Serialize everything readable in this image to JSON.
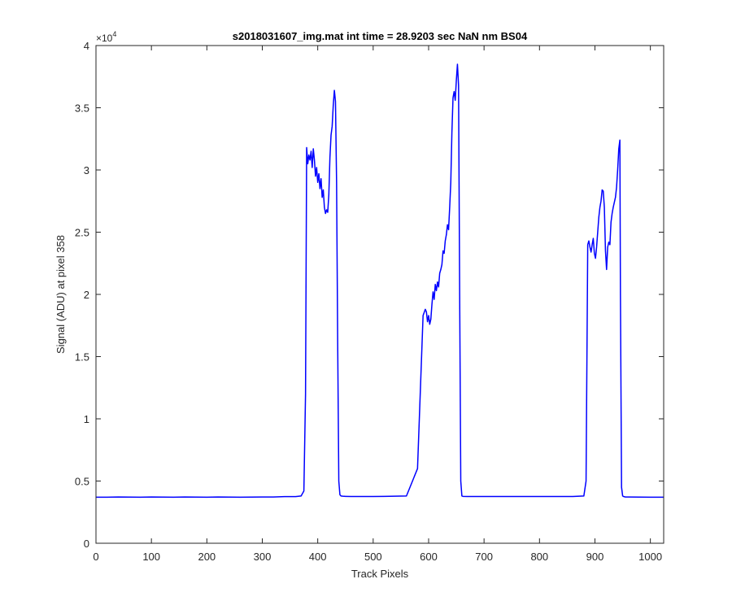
{
  "chart_data": {
    "type": "line",
    "title": "s2018031607_img.mat int time = 28.9203 sec  NaN nm BS04",
    "xlabel": "Track Pixels",
    "ylabel": "Signal (ADU) at pixel 358",
    "xlim": [
      0,
      1024
    ],
    "ylim": [
      0,
      40000
    ],
    "x_ticks": [
      0,
      100,
      200,
      300,
      400,
      500,
      600,
      700,
      800,
      900,
      1000
    ],
    "x_tick_labels": [
      "0",
      "100",
      "200",
      "300",
      "400",
      "500",
      "600",
      "700",
      "800",
      "900",
      "1000"
    ],
    "y_ticks": [
      0,
      5000,
      10000,
      15000,
      20000,
      25000,
      30000,
      35000,
      40000
    ],
    "y_tick_labels": [
      "0",
      "0.5",
      "1",
      "1.5",
      "2",
      "2.5",
      "3",
      "3.5",
      "4"
    ],
    "y_exponent": "×10",
    "y_exponent_power": "4",
    "grid": false,
    "line_color": "#0000ff",
    "series": [
      {
        "x": [
          0,
          20,
          40,
          60,
          80,
          100,
          120,
          140,
          160,
          180,
          200,
          220,
          240,
          260,
          280,
          300,
          320,
          340,
          360,
          370,
          375,
          378,
          380,
          382,
          384,
          386,
          388,
          390,
          392,
          394,
          396,
          398,
          400,
          402,
          404,
          406,
          408,
          410,
          412,
          414,
          416,
          418,
          420,
          422,
          424,
          426,
          428,
          430,
          432,
          434,
          436,
          438,
          440,
          442,
          445,
          450,
          460,
          480,
          500,
          520,
          540,
          560,
          580,
          590,
          594,
          596,
          598,
          600,
          602,
          604,
          606,
          608,
          610,
          612,
          614,
          616,
          618,
          620,
          622,
          624,
          626,
          628,
          630,
          632,
          634,
          636,
          638,
          640,
          642,
          644,
          646,
          648,
          650,
          652,
          654,
          656,
          658,
          660,
          662,
          670,
          680,
          700,
          720,
          740,
          760,
          780,
          800,
          820,
          840,
          860,
          880,
          884,
          887,
          889,
          891,
          893,
          895,
          897,
          899,
          901,
          903,
          905,
          907,
          909,
          911,
          913,
          915,
          917,
          919,
          921,
          923,
          925,
          927,
          929,
          931,
          933,
          935,
          937,
          939,
          941,
          943,
          945,
          946,
          948,
          950,
          952,
          955,
          960,
          980,
          1000,
          1024
        ],
        "y": [
          3700,
          3700,
          3720,
          3710,
          3700,
          3720,
          3710,
          3700,
          3720,
          3710,
          3700,
          3720,
          3710,
          3700,
          3710,
          3720,
          3720,
          3750,
          3750,
          3800,
          4200,
          12000,
          31800,
          30500,
          31200,
          30800,
          31500,
          30200,
          31700,
          30800,
          29500,
          30200,
          29000,
          29700,
          28500,
          29300,
          27800,
          28400,
          27000,
          26500,
          26800,
          26600,
          28000,
          31000,
          32800,
          33500,
          35200,
          36400,
          35500,
          29000,
          16000,
          5000,
          3900,
          3800,
          3780,
          3770,
          3760,
          3760,
          3760,
          3770,
          3780,
          3800,
          6000,
          18300,
          18800,
          18600,
          17800,
          18300,
          17600,
          18000,
          19200,
          20200,
          19600,
          20800,
          20300,
          21000,
          20600,
          21700,
          22000,
          22400,
          23500,
          23300,
          24300,
          24800,
          25600,
          25200,
          27000,
          29000,
          33000,
          35800,
          36300,
          35600,
          37200,
          38500,
          36800,
          20000,
          5000,
          3800,
          3770,
          3760,
          3760,
          3760,
          3760,
          3760,
          3760,
          3760,
          3760,
          3760,
          3760,
          3760,
          3800,
          5000,
          24000,
          24300,
          23800,
          23400,
          24000,
          24500,
          23300,
          22900,
          23800,
          25000,
          26200,
          27000,
          27500,
          28400,
          28300,
          27000,
          23500,
          22000,
          23800,
          24200,
          24000,
          25800,
          26500,
          27000,
          27400,
          27800,
          28600,
          30000,
          31700,
          32400,
          20000,
          4500,
          3800,
          3750,
          3720,
          3720,
          3710,
          3700,
          3700
        ]
      }
    ]
  }
}
